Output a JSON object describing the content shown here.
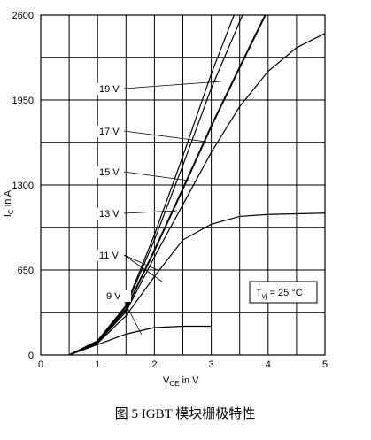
{
  "chart_data": {
    "type": "line",
    "ylabel": [
      "I",
      "C",
      " in A"
    ],
    "xlabel": [
      "V",
      "CE",
      " in V"
    ],
    "caption": "图 5 IGBT 模块栅极特性",
    "note": [
      "T",
      "vj",
      " = 25 °C"
    ],
    "xlim": [
      0,
      5
    ],
    "xticks": [
      0,
      1,
      2,
      3,
      4,
      5
    ],
    "ylim": [
      0,
      2600
    ],
    "yticks": [
      0,
      650,
      1300,
      1950,
      2600
    ],
    "grid": true,
    "series": [
      {
        "name": "19 V",
        "color": "#000000",
        "x": [
          0.5,
          1,
          1.5,
          2,
          2.5,
          3,
          3.4
        ],
        "values": [
          0,
          110,
          380,
          920,
          1520,
          2150,
          2600
        ]
      },
      {
        "name": "17 V",
        "color": "#000000",
        "x": [
          0.5,
          1,
          1.5,
          2,
          2.5,
          3,
          3.55
        ],
        "values": [
          0,
          105,
          370,
          880,
          1450,
          2040,
          2600
        ]
      },
      {
        "name": "15 V",
        "color": "#000000",
        "x": [
          0.5,
          1,
          1.5,
          2,
          2.5,
          3,
          3.5,
          3.95
        ],
        "values": [
          0,
          100,
          350,
          800,
          1270,
          1750,
          2200,
          2600
        ]
      },
      {
        "name": "13 V",
        "color": "#000000",
        "x": [
          0.5,
          1,
          1.5,
          2,
          2.5,
          3,
          3.5,
          4,
          4.5,
          5
        ],
        "values": [
          0,
          95,
          330,
          750,
          1150,
          1550,
          1900,
          2170,
          2350,
          2460
        ]
      },
      {
        "name": "11 V",
        "color": "#000000",
        "x": [
          0.5,
          1,
          1.5,
          2,
          2.5,
          3,
          3.5,
          4,
          5
        ],
        "values": [
          0,
          90,
          300,
          600,
          880,
          1000,
          1060,
          1075,
          1085
        ]
      },
      {
        "name": "9 V",
        "color": "#000000",
        "x": [
          0.5,
          1,
          1.5,
          2,
          2.5,
          3
        ],
        "values": [
          0,
          80,
          160,
          210,
          220,
          220
        ]
      }
    ]
  }
}
